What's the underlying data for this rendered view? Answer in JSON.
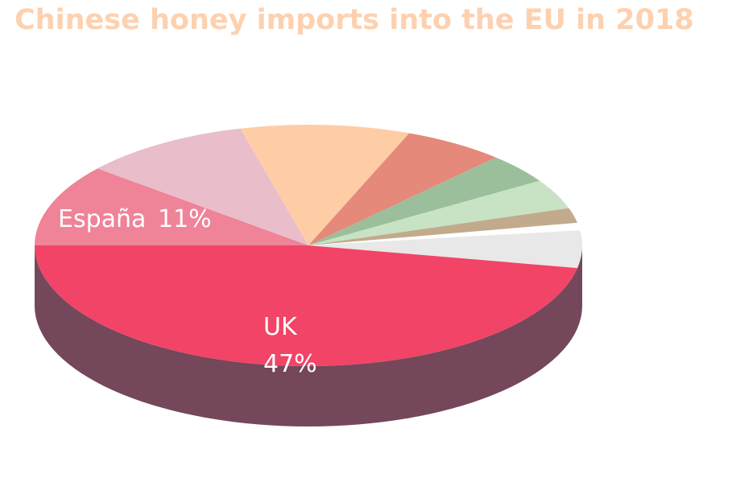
{
  "chart_data": {
    "type": "pie",
    "title": "Chinese honey imports into the EU in 2018",
    "categories": [
      "España",
      null,
      null,
      null,
      null,
      null,
      null,
      null,
      null,
      "UK"
    ],
    "values": [
      11,
      10,
      10,
      6,
      4,
      4,
      2,
      1,
      5,
      47
    ],
    "value_labels": [
      "11%",
      null,
      null,
      null,
      null,
      null,
      null,
      null,
      null,
      "47%"
    ],
    "colors": [
      "#ef8398",
      "#e9bdc9",
      "#fecda6",
      "#e5897a",
      "#9bbf9a",
      "#c7e3c4",
      "#c2aa8c",
      "#ffffff",
      "#e8e8e8",
      "#f24466"
    ]
  }
}
